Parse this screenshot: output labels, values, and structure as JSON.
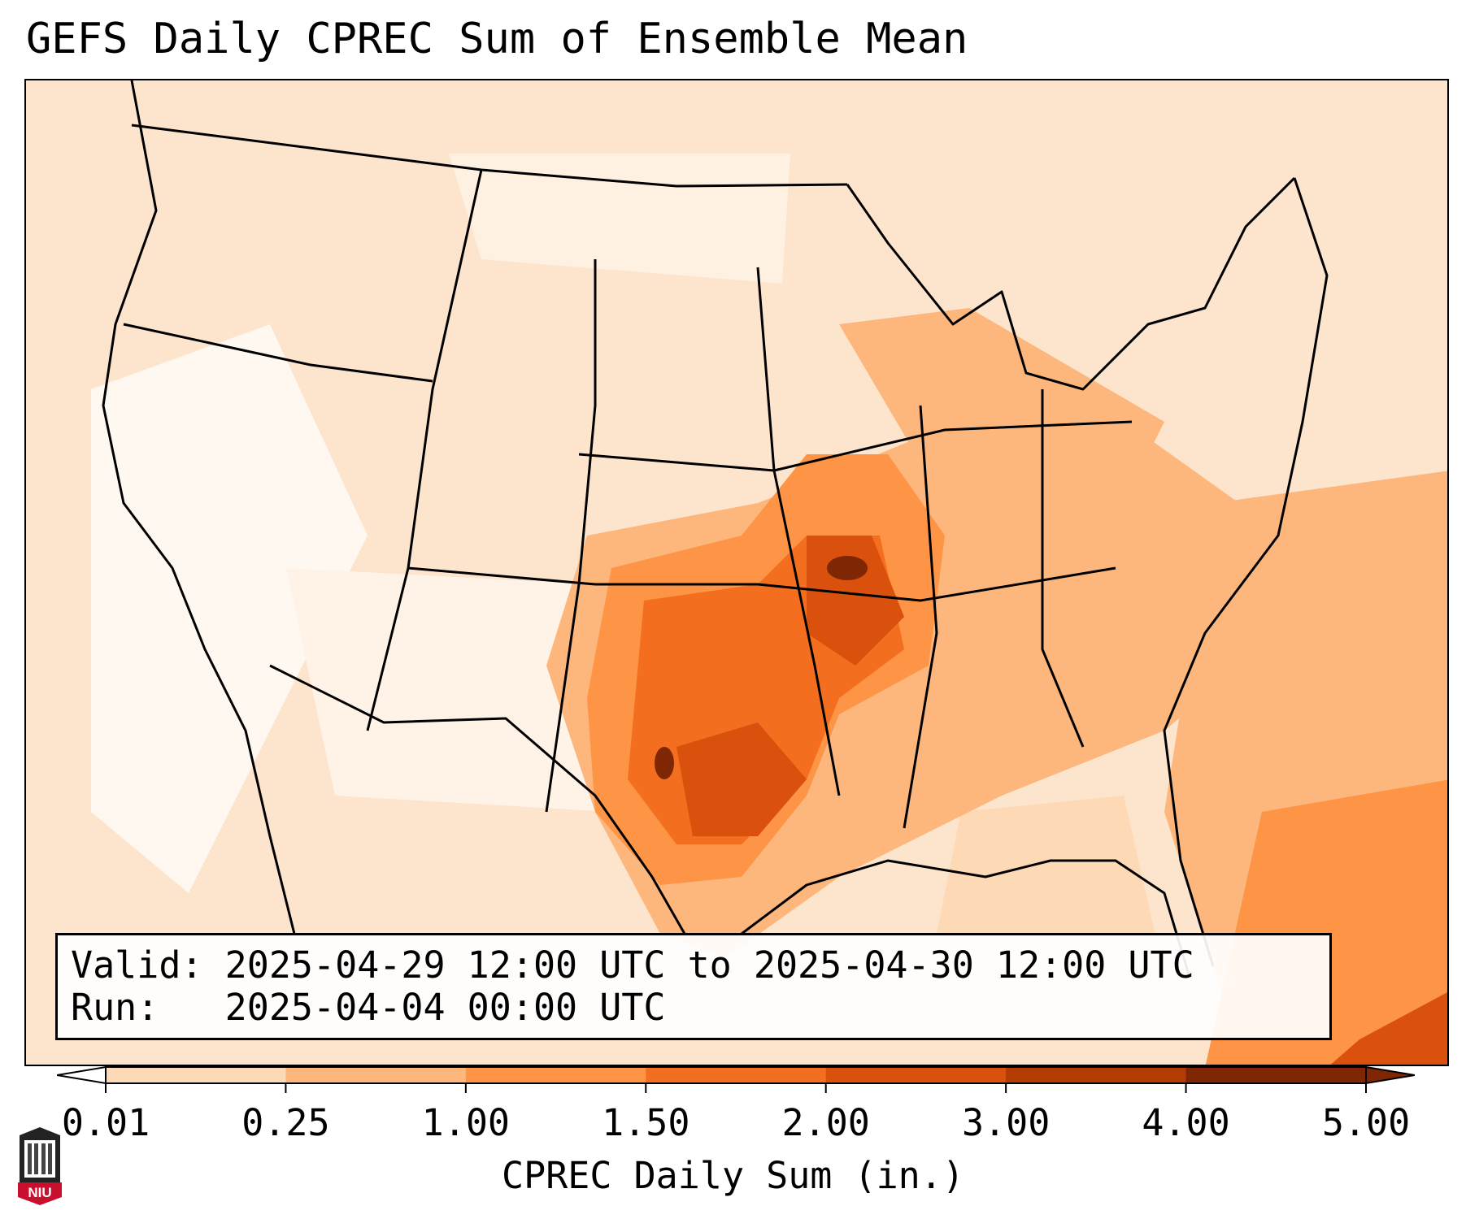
{
  "title": "GEFS Daily CPREC Sum of Ensemble Mean",
  "valid_box": {
    "valid_line": "Valid: 2025-04-29 12:00 UTC to 2025-04-30 12:00 UTC",
    "run_line": "Run:   2025-04-04 00:00 UTC"
  },
  "colorbar": {
    "label": "CPREC Daily Sum (in.)",
    "ticks": [
      "0.01",
      "0.25",
      "1.00",
      "1.50",
      "2.00",
      "3.00",
      "4.00",
      "5.00"
    ],
    "colors": [
      "#fff5eb",
      "#fdd9b5",
      "#fdb77d",
      "#fd9446",
      "#f36e1e",
      "#d9510c",
      "#b23c03",
      "#7f2704"
    ],
    "under_color": "#ffffff",
    "over_color": "#7f2704"
  },
  "logo": {
    "text": "NIU"
  },
  "map": {
    "features": [
      "state-boundaries",
      "coastlines",
      "country-borders"
    ],
    "max_rain_region": "southern plains / mid-mississippi valley"
  }
}
